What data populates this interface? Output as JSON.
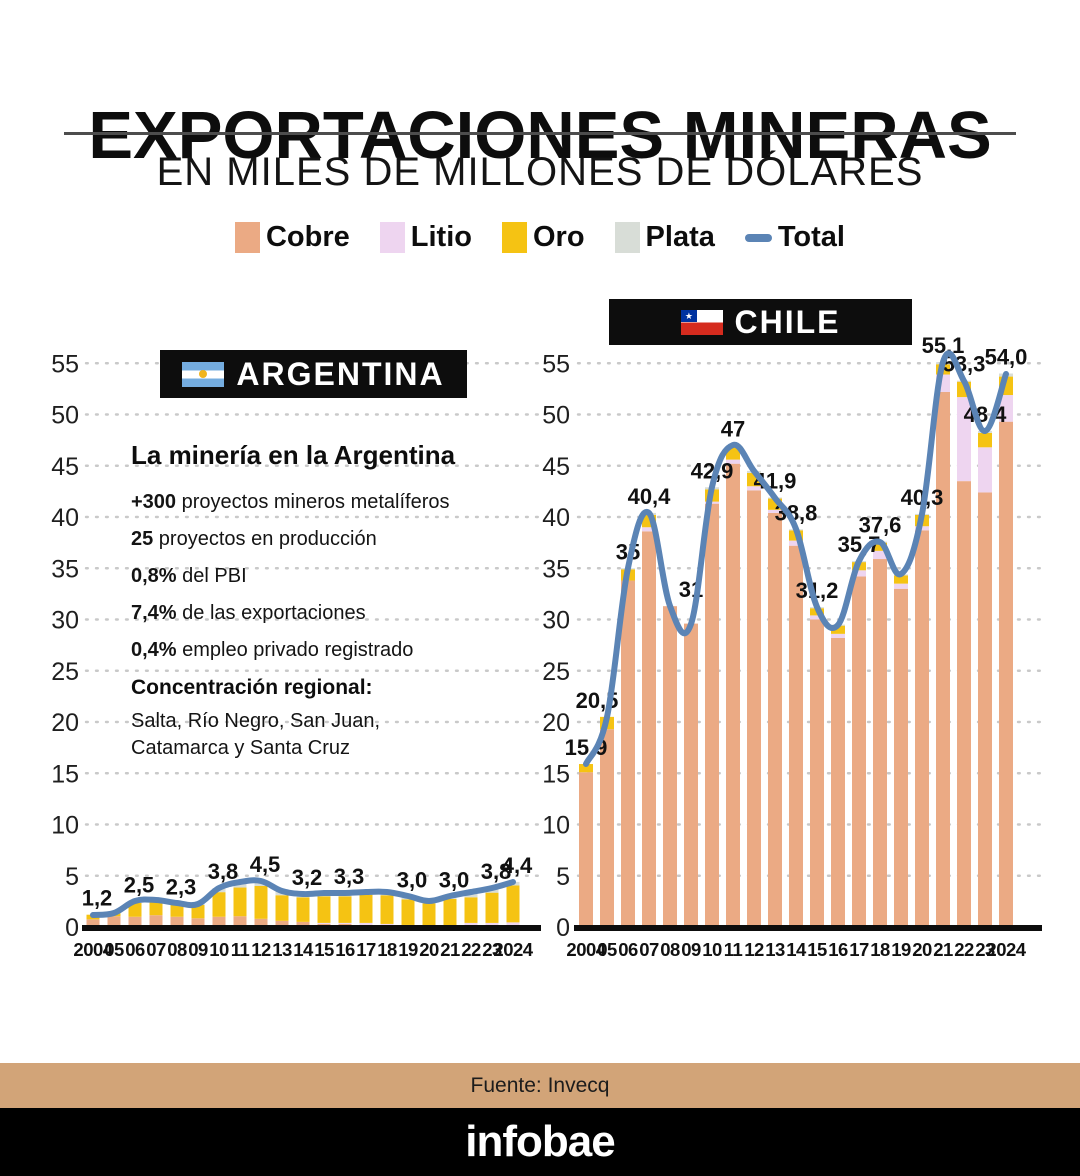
{
  "header": {
    "title": "EXPORTACIONES MINERAS",
    "subtitle": "EN MILES DE MILLONES DE DÓLARES"
  },
  "legend": [
    {
      "label": "Cobre",
      "color": "#EBAA84",
      "kind": "swatch"
    },
    {
      "label": "Litio",
      "color": "#EED5F0",
      "kind": "swatch"
    },
    {
      "label": "Oro",
      "color": "#F5C313",
      "kind": "swatch"
    },
    {
      "label": "Plata",
      "color": "#D8DDD7",
      "kind": "swatch"
    },
    {
      "label": "Total",
      "color": "#5B84B5",
      "kind": "line"
    }
  ],
  "argentina": {
    "banner": "ARGENTINA",
    "stats": {
      "title": "La minería en la Argentina",
      "items": [
        {
          "lead": "+300",
          "rest": " proyectos mineros metalíferos"
        },
        {
          "lead": "25",
          "rest": " proyectos en producción"
        },
        {
          "lead": "0,8%",
          "rest": " del PBI"
        },
        {
          "lead": "7,4%",
          "rest": " de las exportaciones"
        },
        {
          "lead": "0,4%",
          "rest": " empleo privado registrado"
        }
      ],
      "region_title": "Concentración regional:",
      "region_lines": [
        "Salta, Río Negro, San Juan,",
        "Catamarca y Santa Cruz"
      ]
    }
  },
  "chile": {
    "banner": "CHILE"
  },
  "footer": {
    "source": "Fuente: Invecq",
    "brand": "infobae"
  },
  "chart_data": [
    {
      "type": "bar",
      "stacked": true,
      "title": "ARGENTINA",
      "ylabel": "",
      "xlabel": "",
      "ylim": [
        0,
        55
      ],
      "ytick_step": 5,
      "grid": "dotted horizontal",
      "legend_position": "top shared",
      "categories": [
        "2004",
        "05",
        "06",
        "07",
        "08",
        "09",
        "10",
        "11",
        "12",
        "13",
        "14",
        "15",
        "16",
        "17",
        "18",
        "19",
        "20",
        "21",
        "22",
        "23",
        "2024"
      ],
      "series": [
        {
          "name": "Cobre",
          "color": "#EBAA84",
          "values": [
            0.75,
            1.05,
            1.0,
            1.15,
            1.0,
            0.85,
            1.0,
            1.05,
            0.8,
            0.6,
            0.5,
            0.3,
            0.3,
            0.2,
            0.1,
            0,
            0,
            0,
            0,
            0,
            0
          ]
        },
        {
          "name": "Litio",
          "color": "#EED5F0",
          "values": [
            0,
            0,
            0,
            0,
            0,
            0,
            0,
            0,
            0,
            0,
            0,
            0.1,
            0.1,
            0.2,
            0.2,
            0.2,
            0.15,
            0.15,
            0.4,
            0.4,
            0.45
          ]
        },
        {
          "name": "Oro",
          "color": "#F5C313",
          "values": [
            0.45,
            0.3,
            1.35,
            1.3,
            1.2,
            1.3,
            2.4,
            2.8,
            3.2,
            2.5,
            2.4,
            2.6,
            2.6,
            2.75,
            2.8,
            2.5,
            2.15,
            2.6,
            2.5,
            2.95,
            3.6
          ]
        },
        {
          "name": "Plata",
          "color": "#D8DDD7",
          "values": [
            0,
            0,
            0.15,
            0.15,
            0.1,
            0.1,
            0.4,
            0.5,
            0.5,
            0.4,
            0.3,
            0.3,
            0.3,
            0.3,
            0.3,
            0.3,
            0.2,
            0.25,
            0.5,
            0.45,
            0.35
          ]
        }
      ],
      "line_series": {
        "name": "Total",
        "color": "#5B84B5",
        "values": [
          1.2,
          1.35,
          2.5,
          2.6,
          2.3,
          2.25,
          3.8,
          4.35,
          4.5,
          3.5,
          3.2,
          3.3,
          3.3,
          3.45,
          3.4,
          3.0,
          2.5,
          3.0,
          3.4,
          3.8,
          4.4
        ]
      },
      "point_labels": [
        "1,2",
        null,
        "2,5",
        null,
        "2,3",
        null,
        "3,8",
        null,
        "4,5",
        null,
        "3,2",
        null,
        "3,3",
        null,
        null,
        "3,0",
        null,
        "3,0",
        null,
        "3,8",
        "4,4"
      ]
    },
    {
      "type": "bar",
      "stacked": true,
      "title": "CHILE",
      "ylabel": "",
      "xlabel": "",
      "ylim": [
        0,
        55
      ],
      "ytick_step": 5,
      "grid": "dotted horizontal",
      "legend_position": "top shared",
      "categories": [
        "2004",
        "05",
        "06",
        "07",
        "08",
        "09",
        "10",
        "11",
        "12",
        "13",
        "14",
        "15",
        "16",
        "17",
        "18",
        "19",
        "20",
        "21",
        "22",
        "23",
        "2024"
      ],
      "series": [
        {
          "name": "Cobre",
          "color": "#EBAA84",
          "values": [
            15.1,
            19.3,
            33.8,
            38.6,
            31.3,
            29.6,
            41.3,
            45.2,
            42.6,
            40.4,
            37.2,
            30.0,
            28.2,
            34.2,
            35.9,
            33.0,
            38.7,
            52.2,
            43.5,
            42.4,
            49.3
          ]
        },
        {
          "name": "Litio",
          "color": "#EED5F0",
          "values": [
            0,
            0,
            0,
            0.4,
            0,
            0,
            0.2,
            0.4,
            0.4,
            0.3,
            0.5,
            0.4,
            0.4,
            0.6,
            0.8,
            0.5,
            0.4,
            1.7,
            8.2,
            4.4,
            2.6
          ]
        },
        {
          "name": "Oro",
          "color": "#F5C313",
          "values": [
            0.8,
            1.2,
            1.1,
            1.2,
            0,
            0,
            1.2,
            1.2,
            1.3,
            1.1,
            1.0,
            0.7,
            0.8,
            0.8,
            0.8,
            0.8,
            1.1,
            1.0,
            1.5,
            1.4,
            1.8
          ]
        },
        {
          "name": "Plata",
          "color": "#D8DDD7",
          "values": [
            0,
            0,
            0.1,
            0.2,
            0,
            0,
            0.2,
            0.2,
            0.2,
            0.1,
            0.1,
            0.1,
            0.1,
            0.1,
            0.1,
            0.1,
            0.1,
            0.2,
            0.1,
            0.2,
            0.3
          ]
        }
      ],
      "line_series": {
        "name": "Total",
        "color": "#5B84B5",
        "values": [
          15.9,
          20.5,
          35,
          40.4,
          31.3,
          29.6,
          42.9,
          47,
          44.5,
          41.9,
          38.8,
          31.2,
          29.5,
          35.7,
          37.6,
          34.4,
          40.3,
          55.1,
          53.3,
          48.4,
          54.0
        ]
      },
      "point_labels": [
        "15,9",
        "20,5",
        "35",
        "40,4",
        "31",
        null,
        "42,9",
        "47",
        null,
        "41,9",
        "38,8",
        "31,2",
        null,
        "35,7",
        "37,6",
        null,
        "40,3",
        "55,1",
        "53,3",
        "48,4",
        "54,0"
      ]
    }
  ]
}
